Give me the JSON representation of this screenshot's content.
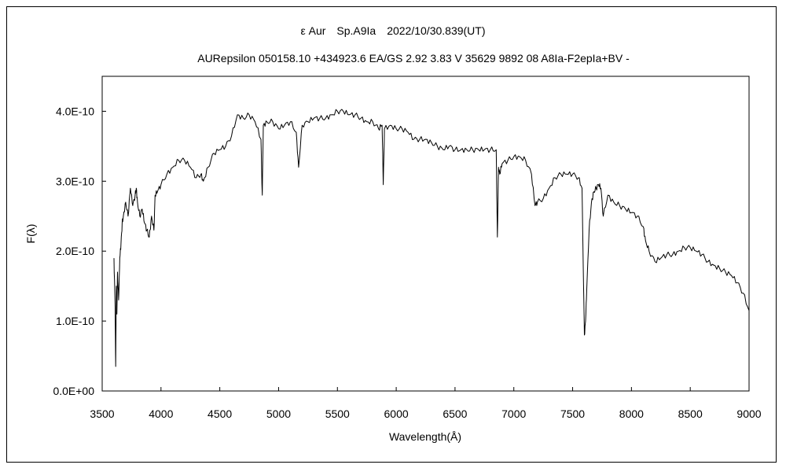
{
  "chart_data": {
    "type": "line",
    "title": "ε Aur　Sp.A9Ia　2022/10/30.839(UT)",
    "subtitle": "AURepsilon 050158.10 +434923.6 EA/GS 2.92 3.83 V 35629 9892 08 A8Ia-F2epIa+BV -",
    "xlabel": "Wavelength(Å)",
    "ylabel": "F(λ)",
    "xlim": [
      3500,
      9000
    ],
    "ylim": [
      0,
      4.5e-10
    ],
    "grid": false,
    "legend": "none",
    "x_ticks": [
      3500,
      4000,
      4500,
      5000,
      5500,
      6000,
      6500,
      7000,
      7500,
      8000,
      8500,
      9000
    ],
    "x_tick_labels": [
      "3500",
      "4000",
      "4500",
      "5000",
      "5500",
      "6000",
      "6500",
      "7000",
      "7500",
      "8000",
      "8500",
      "9000"
    ],
    "y_ticks": [
      0,
      1e-10,
      2e-10,
      3e-10,
      4e-10
    ],
    "y_tick_labels": [
      "0.0E+00",
      "1.0E-10",
      "2.0E-10",
      "3.0E-10",
      "4.0E-10"
    ],
    "series": [
      {
        "x": [
          3600,
          3610,
          3615,
          3620,
          3625,
          3630,
          3640,
          3650,
          3660,
          3670,
          3680,
          3700,
          3720,
          3740,
          3760,
          3780,
          3790,
          3800,
          3820,
          3840,
          3860,
          3880,
          3900,
          3920,
          3940,
          3950,
          3970,
          4000,
          4050,
          4100,
          4150,
          4200,
          4250,
          4300,
          4340,
          4360,
          4400,
          4450,
          4500,
          4550,
          4600,
          4650,
          4700,
          4750,
          4800,
          4850,
          4861,
          4870,
          4900,
          4950,
          5000,
          5050,
          5100,
          5150,
          5170,
          5200,
          5250,
          5300,
          5350,
          5400,
          5450,
          5500,
          5550,
          5600,
          5650,
          5700,
          5750,
          5800,
          5850,
          5880,
          5890,
          5900,
          5950,
          6000,
          6050,
          6100,
          6150,
          6200,
          6250,
          6300,
          6350,
          6400,
          6450,
          6500,
          6550,
          6600,
          6650,
          6700,
          6750,
          6800,
          6850,
          6860,
          6870,
          6880,
          6900,
          6950,
          7000,
          7050,
          7100,
          7150,
          7180,
          7200,
          7250,
          7300,
          7350,
          7400,
          7450,
          7500,
          7550,
          7580,
          7590,
          7600,
          7610,
          7620,
          7640,
          7660,
          7680,
          7700,
          7720,
          7740,
          7760,
          7800,
          7850,
          7900,
          7950,
          8000,
          8050,
          8100,
          8120,
          8150,
          8200,
          8250,
          8300,
          8350,
          8400,
          8450,
          8500,
          8550,
          8600,
          8650,
          8700,
          8750,
          8800,
          8850,
          8900,
          8950,
          9000
        ],
        "values": [
          1.9e-10,
          1.2e-10,
          3.5e-11,
          1.5e-10,
          1.1e-10,
          1.7e-10,
          1.3e-10,
          1.9e-10,
          2.1e-10,
          2.4e-10,
          2.5e-10,
          2.7e-10,
          2.5e-10,
          2.9e-10,
          2.65e-10,
          2.8e-10,
          2.9e-10,
          2.7e-10,
          2.5e-10,
          2.6e-10,
          2.4e-10,
          2.3e-10,
          2.2e-10,
          2.5e-10,
          2.3e-10,
          2.8e-10,
          2.85e-10,
          2.95e-10,
          3.1e-10,
          3.2e-10,
          3.3e-10,
          3.3e-10,
          3.2e-10,
          3.05e-10,
          3.1e-10,
          3e-10,
          3.2e-10,
          3.4e-10,
          3.45e-10,
          3.5e-10,
          3.65e-10,
          3.95e-10,
          3.9e-10,
          3.95e-10,
          3.85e-10,
          3.6e-10,
          2.8e-10,
          3.8e-10,
          3.85e-10,
          3.85e-10,
          3.75e-10,
          3.8e-10,
          3.85e-10,
          3.7e-10,
          3.2e-10,
          3.8e-10,
          3.85e-10,
          3.9e-10,
          3.9e-10,
          3.9e-10,
          3.95e-10,
          4e-10,
          4e-10,
          3.95e-10,
          3.95e-10,
          3.9e-10,
          3.85e-10,
          3.85e-10,
          3.75e-10,
          3.8e-10,
          2.95e-10,
          3.75e-10,
          3.8e-10,
          3.75e-10,
          3.75e-10,
          3.7e-10,
          3.6e-10,
          3.6e-10,
          3.6e-10,
          3.55e-10,
          3.5e-10,
          3.45e-10,
          3.5e-10,
          3.45e-10,
          3.45e-10,
          3.45e-10,
          3.45e-10,
          3.45e-10,
          3.45e-10,
          3.45e-10,
          3.45e-10,
          2.2e-10,
          3.2e-10,
          3.1e-10,
          3.25e-10,
          3.3e-10,
          3.35e-10,
          3.35e-10,
          3.3e-10,
          3.1e-10,
          2.65e-10,
          2.7e-10,
          2.75e-10,
          2.9e-10,
          3.05e-10,
          3.1e-10,
          3.1e-10,
          3.1e-10,
          3.05e-10,
          2.9e-10,
          1.8e-10,
          8e-11,
          1e-10,
          1.45e-10,
          2.3e-10,
          2.7e-10,
          2.85e-10,
          2.9e-10,
          2.95e-10,
          2.9e-10,
          2.5e-10,
          2.8e-10,
          2.7e-10,
          2.65e-10,
          2.6e-10,
          2.55e-10,
          2.5e-10,
          2.35e-10,
          2.15e-10,
          2e-10,
          1.85e-10,
          1.9e-10,
          1.95e-10,
          1.95e-10,
          2e-10,
          2.05e-10,
          2.05e-10,
          2e-10,
          1.95e-10,
          1.85e-10,
          1.8e-10,
          1.75e-10,
          1.7e-10,
          1.65e-10,
          1.55e-10,
          1.4e-10,
          1.15e-10
        ]
      }
    ]
  }
}
